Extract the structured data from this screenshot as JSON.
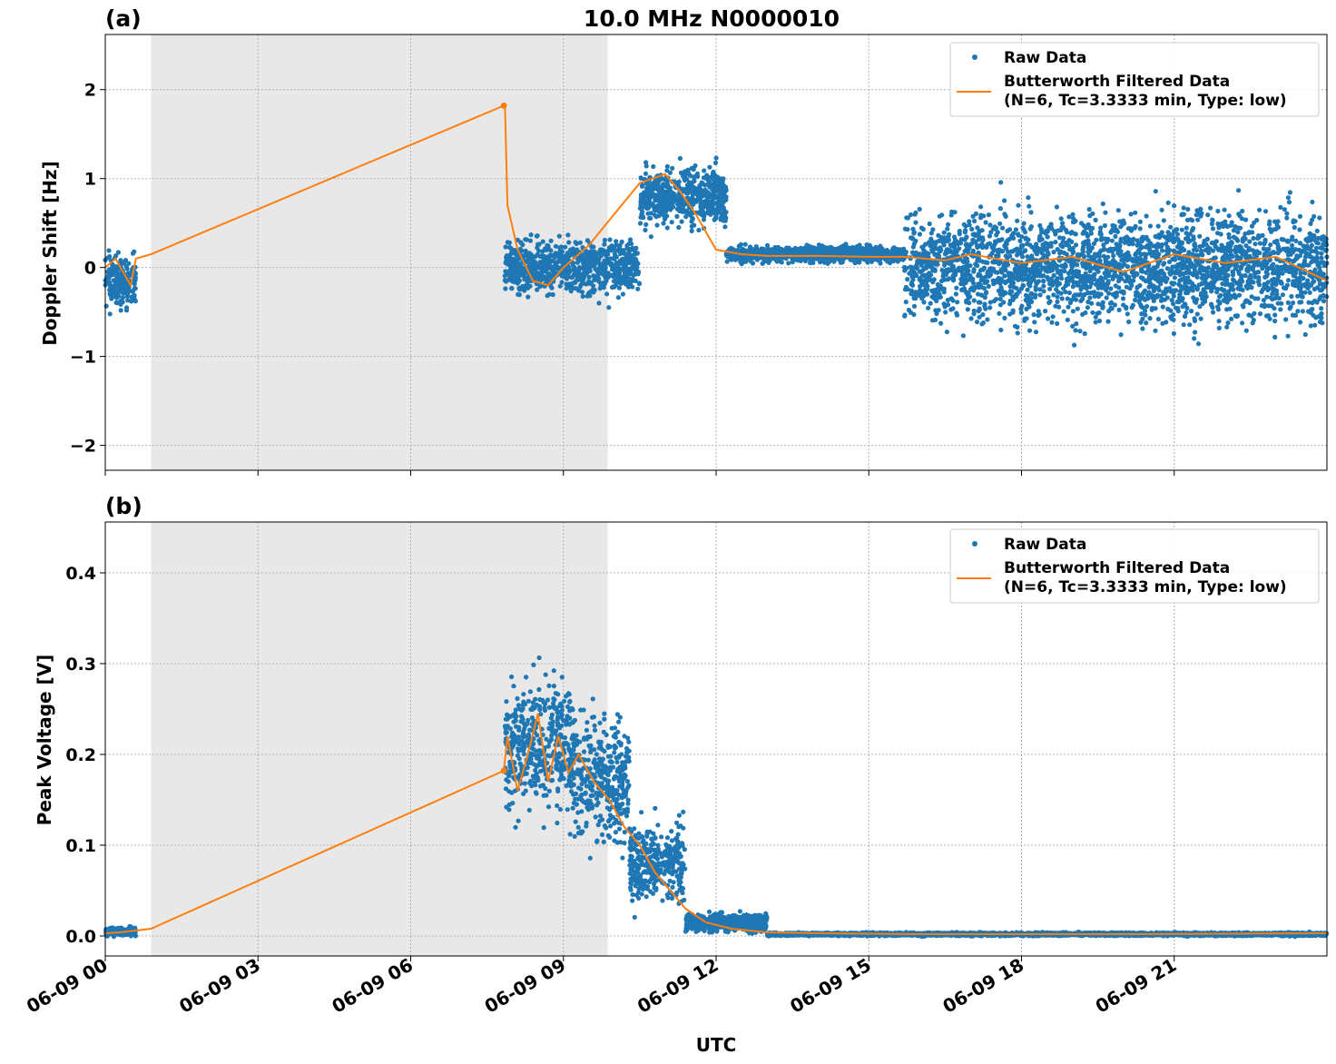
{
  "figure": {
    "title": "10.0 MHz N0000010",
    "xlabel": "UTC",
    "xtick_labels": [
      "06-09 00",
      "06-09 03",
      "06-09 06",
      "06-09 09",
      "06-09 12",
      "06-09 15",
      "06-09 18",
      "06-09 21"
    ],
    "legend": {
      "raw_label": "Raw Data",
      "filtered_label_line1": "Butterworth Filtered Data",
      "filtered_label_line2": "(N=6, Tc=3.3333 min, Type: low)"
    },
    "colors": {
      "raw": "#1f77b4",
      "filtered": "#ff7f0e",
      "shade": "#e8e8e8",
      "grid": "#b0b0b0"
    }
  },
  "chart_data": [
    {
      "panel_label": "(a)",
      "type": "scatter",
      "ylabel": "Doppler Shift [Hz]",
      "x_unit": "hours UTC on 06-09",
      "xlim": [
        0,
        24
      ],
      "ylim": [
        -2.28,
        2.62
      ],
      "yticks": [
        -2,
        -1,
        0,
        1,
        2
      ],
      "ytick_labels": [
        "−2",
        "−1",
        "0",
        "1",
        "2"
      ],
      "shaded_span_hours": [
        0.9,
        9.87
      ],
      "grid": true,
      "legend_position": "upper right",
      "series": [
        {
          "name": "Raw Data",
          "kind": "dots",
          "segments": [
            {
              "x_range": [
                0,
                0.6
              ],
              "center": -0.15,
              "spread": 0.35
            },
            {
              "x_range": [
                7.85,
                10.5
              ],
              "center": 0.0,
              "spread": 0.35
            },
            {
              "x_range": [
                10.5,
                12.2
              ],
              "center": 0.8,
              "spread": 0.4
            },
            {
              "x_range": [
                12.2,
                15.7
              ],
              "center": 0.15,
              "spread": 0.1
            },
            {
              "x_range": [
                15.7,
                24
              ],
              "center": 0.0,
              "spread": 0.75
            }
          ]
        },
        {
          "name": "Butterworth Filtered Data",
          "kind": "line",
          "x": [
            0,
            0.2,
            0.4,
            0.5,
            0.6,
            0.9,
            7.83,
            7.85,
            7.9,
            8.1,
            8.4,
            8.7,
            9.0,
            9.5,
            10.0,
            10.5,
            11.0,
            11.3,
            11.6,
            12.0,
            12.5,
            13.0,
            14.0,
            15.0,
            15.7,
            16.5,
            17.0,
            18.0,
            19.0,
            20.0,
            21.0,
            22.0,
            23.0,
            24.0
          ],
          "y": [
            0.0,
            0.1,
            -0.1,
            -0.2,
            0.1,
            0.15,
            1.82,
            1.85,
            0.7,
            0.2,
            -0.15,
            -0.2,
            0.0,
            0.25,
            0.6,
            0.95,
            1.05,
            0.85,
            0.6,
            0.2,
            0.15,
            0.13,
            0.13,
            0.12,
            0.12,
            0.08,
            0.15,
            0.05,
            0.12,
            -0.05,
            0.15,
            0.05,
            0.12,
            -0.15
          ]
        }
      ]
    },
    {
      "panel_label": "(b)",
      "type": "scatter",
      "ylabel": "Peak Voltage [V]",
      "x_unit": "hours UTC on 06-09",
      "xlim": [
        0,
        24
      ],
      "ylim": [
        -0.022,
        0.456
      ],
      "yticks": [
        0.0,
        0.1,
        0.2,
        0.3,
        0.4
      ],
      "ytick_labels": [
        "0.0",
        "0.1",
        "0.2",
        "0.3",
        "0.4"
      ],
      "shaded_span_hours": [
        0.9,
        9.87
      ],
      "grid": true,
      "legend_position": "upper right",
      "series": [
        {
          "name": "Raw Data",
          "kind": "dots",
          "segments": [
            {
              "x_range": [
                0,
                0.6
              ],
              "center": 0.005,
              "spread": 0.005
            },
            {
              "x_range": [
                7.85,
                9.2
              ],
              "center": 0.21,
              "spread": 0.09
            },
            {
              "x_range": [
                9.2,
                10.3
              ],
              "center": 0.17,
              "spread": 0.08
            },
            {
              "x_range": [
                10.3,
                11.4
              ],
              "center": 0.08,
              "spread": 0.05
            },
            {
              "x_range": [
                11.4,
                13.0
              ],
              "center": 0.015,
              "spread": 0.012
            },
            {
              "x_range": [
                13.0,
                24
              ],
              "center": 0.002,
              "spread": 0.002
            }
          ]
        },
        {
          "name": "Butterworth Filtered Data",
          "kind": "line",
          "x": [
            0,
            0.3,
            0.6,
            0.9,
            7.83,
            7.9,
            8.1,
            8.3,
            8.5,
            8.7,
            8.9,
            9.1,
            9.3,
            9.6,
            9.9,
            10.2,
            10.5,
            10.8,
            11.1,
            11.4,
            11.8,
            12.3,
            13.0,
            14.0,
            16.0,
            20.0,
            24.0
          ],
          "y": [
            0.003,
            0.004,
            0.006,
            0.008,
            0.182,
            0.22,
            0.16,
            0.2,
            0.245,
            0.17,
            0.22,
            0.18,
            0.2,
            0.17,
            0.15,
            0.12,
            0.1,
            0.07,
            0.05,
            0.03,
            0.015,
            0.008,
            0.004,
            0.003,
            0.002,
            0.002,
            0.003
          ]
        }
      ]
    }
  ]
}
